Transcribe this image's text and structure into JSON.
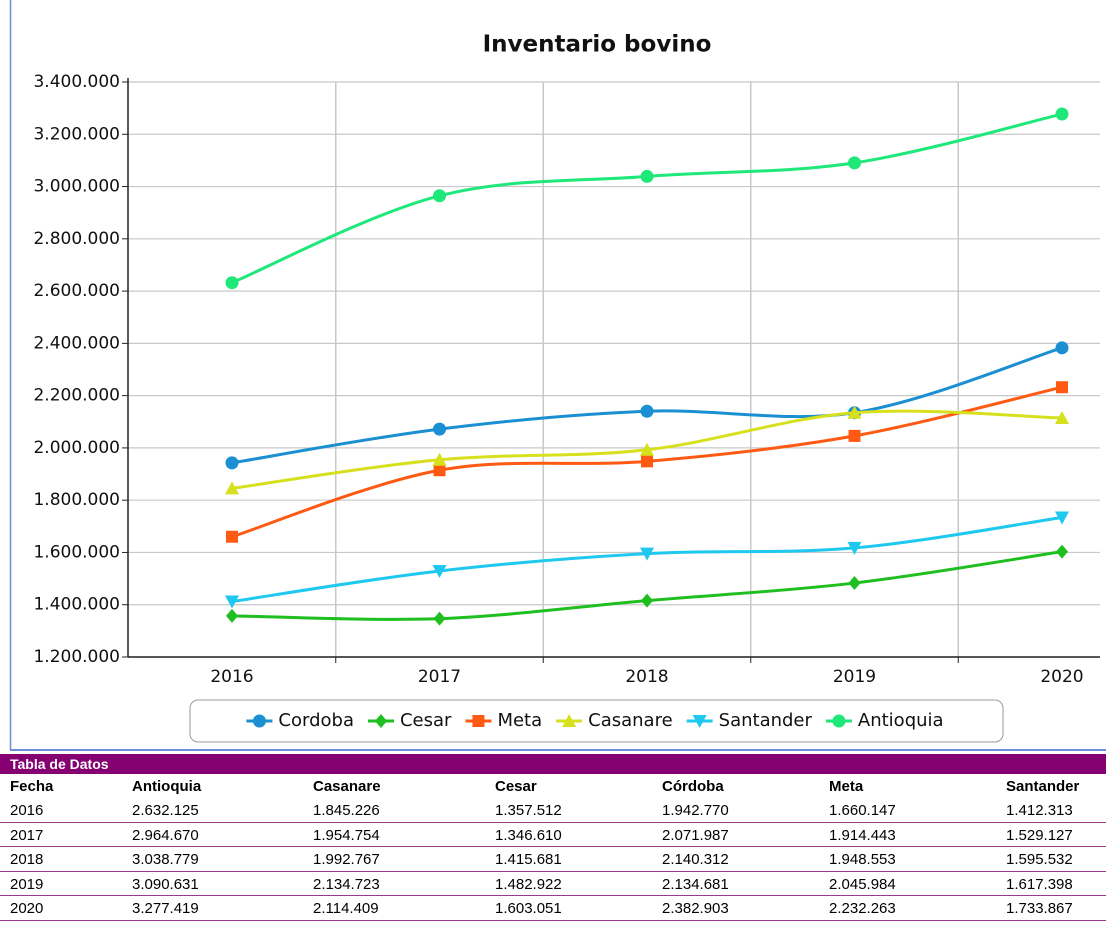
{
  "chart_data": {
    "type": "line",
    "title": "Inventario bovino",
    "categories": [
      "2016",
      "2017",
      "2018",
      "2019",
      "2020"
    ],
    "series": [
      {
        "name": "Cordoba",
        "color": "#1a8fd1",
        "marker": "circle",
        "values": [
          1942770,
          2071987,
          2140312,
          2134681,
          2382903
        ]
      },
      {
        "name": "Cesar",
        "color": "#1fbf1f",
        "marker": "diamond",
        "values": [
          1357512,
          1346610,
          1415681,
          1482922,
          1603051
        ]
      },
      {
        "name": "Meta",
        "color": "#ff5a14",
        "marker": "square",
        "values": [
          1660147,
          1914443,
          1948553,
          2045984,
          2232263
        ]
      },
      {
        "name": "Casanare",
        "color": "#d6e01c",
        "marker": "triangle-up",
        "values": [
          1845226,
          1954754,
          1992767,
          2134723,
          2114409
        ]
      },
      {
        "name": "Santander",
        "color": "#1ec8ef",
        "marker": "triangle-down",
        "values": [
          1412313,
          1529127,
          1595532,
          1617398,
          1733867
        ]
      },
      {
        "name": "Antioquia",
        "color": "#1ee87a",
        "marker": "circle",
        "values": [
          2632125,
          2964670,
          3038779,
          3090631,
          3277419
        ]
      }
    ],
    "ylim": [
      1200000,
      3400000
    ],
    "yticks": [
      {
        "value": 1200000,
        "label": "1.200.000"
      },
      {
        "value": 1400000,
        "label": "1.400.000"
      },
      {
        "value": 1600000,
        "label": "1.600.000"
      },
      {
        "value": 1800000,
        "label": "1.800.000"
      },
      {
        "value": 2000000,
        "label": "2.000.000"
      },
      {
        "value": 2200000,
        "label": "2.200.000"
      },
      {
        "value": 2400000,
        "label": "2.400.000"
      },
      {
        "value": 2600000,
        "label": "2.600.000"
      },
      {
        "value": 2800000,
        "label": "2.800.000"
      },
      {
        "value": 3000000,
        "label": "3.000.000"
      },
      {
        "value": 3200000,
        "label": "3.200.000"
      },
      {
        "value": 3400000,
        "label": "3.400.000"
      }
    ],
    "grid": true,
    "legend": "bottom"
  },
  "table": {
    "title": "Tabla de Datos",
    "columns": [
      "Fecha",
      "Antioquia",
      "Casanare",
      "Cesar",
      "Córdoba",
      "Meta",
      "Santander"
    ],
    "rows": [
      [
        "2016",
        "2.632.125",
        "1.845.226",
        "1.357.512",
        "1.942.770",
        "1.660.147",
        "1.412.313"
      ],
      [
        "2017",
        "2.964.670",
        "1.954.754",
        "1.346.610",
        "2.071.987",
        "1.914.443",
        "1.529.127"
      ],
      [
        "2018",
        "3.038.779",
        "1.992.767",
        "1.415.681",
        "2.140.312",
        "1.948.553",
        "1.595.532"
      ],
      [
        "2019",
        "3.090.631",
        "2.134.723",
        "1.482.922",
        "2.134.681",
        "2.045.984",
        "1.617.398"
      ],
      [
        "2020",
        "3.277.419",
        "2.114.409",
        "1.603.051",
        "2.382.903",
        "2.232.263",
        "1.733.867"
      ]
    ]
  }
}
